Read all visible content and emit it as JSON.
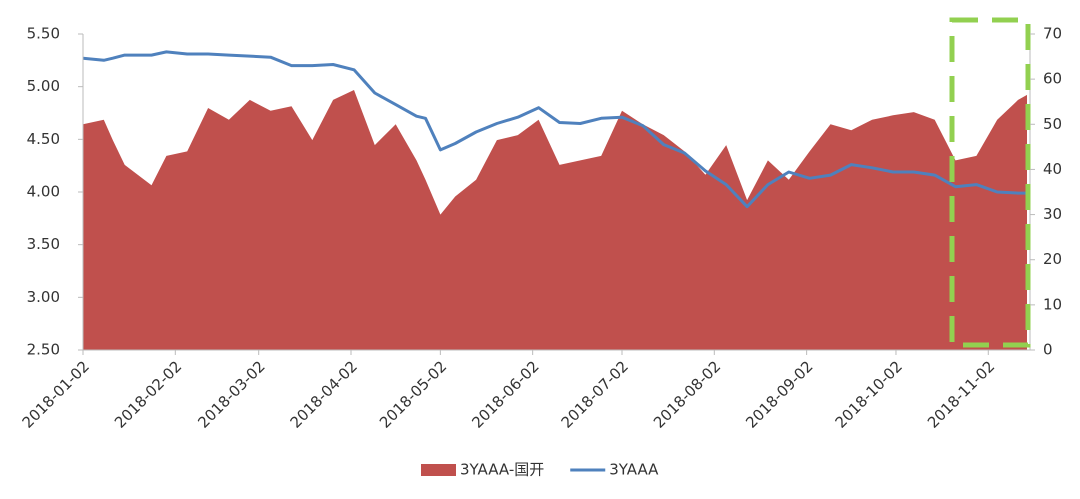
{
  "chart_data": {
    "type": "area-line",
    "x": [
      "2018-01-02",
      "2018-01-09",
      "2018-01-12",
      "2018-01-16",
      "2018-01-25",
      "2018-01-30",
      "2018-02-06",
      "2018-02-13",
      "2018-02-20",
      "2018-02-27",
      "2018-03-06",
      "2018-03-13",
      "2018-03-20",
      "2018-03-27",
      "2018-04-03",
      "2018-04-10",
      "2018-04-17",
      "2018-04-24",
      "2018-04-27",
      "2018-05-02",
      "2018-05-07",
      "2018-05-14",
      "2018-05-21",
      "2018-05-28",
      "2018-06-04",
      "2018-06-11",
      "2018-06-18",
      "2018-06-25",
      "2018-07-02",
      "2018-07-09",
      "2018-07-16",
      "2018-07-23",
      "2018-07-30",
      "2018-08-06",
      "2018-08-13",
      "2018-08-20",
      "2018-08-27",
      "2018-09-03",
      "2018-09-10",
      "2018-09-17",
      "2018-09-24",
      "2018-10-01",
      "2018-10-08",
      "2018-10-15",
      "2018-10-22",
      "2018-10-29",
      "2018-11-05",
      "2018-11-12",
      "2018-11-15"
    ],
    "series": [
      {
        "name": "3YAAA-国开",
        "color": "#c0504d",
        "axis": "y2",
        "values": [
          50,
          51,
          46.5,
          41,
          36.5,
          43,
          44,
          53.6,
          51,
          55.4,
          53,
          54,
          46.5,
          55.4,
          57.6,
          45.4,
          50,
          42,
          37.7,
          30,
          34,
          37.7,
          46.5,
          47.6,
          51,
          41,
          42,
          43,
          53,
          50,
          47.6,
          44,
          38.8,
          45.4,
          33.2,
          42,
          37.7,
          44,
          50,
          48.7,
          51,
          52,
          52.7,
          51,
          42,
          43,
          51,
          55.4,
          56.5
        ]
      },
      {
        "name": "3YAAA",
        "color": "#4f81bd",
        "values": [
          5.27,
          5.25,
          5.27,
          5.3,
          5.3,
          5.33,
          5.31,
          5.31,
          5.3,
          5.29,
          5.28,
          5.2,
          5.2,
          5.21,
          5.16,
          4.94,
          4.83,
          4.72,
          4.7,
          4.4,
          4.46,
          4.57,
          4.65,
          4.71,
          4.8,
          4.66,
          4.65,
          4.7,
          4.71,
          4.63,
          4.45,
          4.37,
          4.2,
          4.07,
          3.86,
          4.07,
          4.19,
          4.13,
          4.16,
          4.26,
          4.23,
          4.19,
          4.19,
          4.16,
          4.05,
          4.07,
          4.0,
          3.99,
          3.99
        ]
      }
    ],
    "xlim": [
      "2018-01-02",
      "2018-11-15"
    ],
    "xticks": [
      "2018-01-02",
      "2018-02-02",
      "2018-03-02",
      "2018-04-02",
      "2018-05-02",
      "2018-06-02",
      "2018-07-02",
      "2018-08-02",
      "2018-09-02",
      "2018-10-02",
      "2018-11-02"
    ],
    "ylim": [
      2.5,
      5.5
    ],
    "yticks": [
      {
        "value": 2.5,
        "label": "2.50"
      },
      {
        "value": 3,
        "label": "3.00"
      },
      {
        "value": 3.5,
        "label": "3.50"
      },
      {
        "value": 4,
        "label": "4.00"
      },
      {
        "value": 4.5,
        "label": "4.50"
      },
      {
        "value": 5,
        "label": "5.00"
      },
      {
        "value": 5.5,
        "label": "5.50"
      }
    ],
    "y2lim": [
      0,
      70
    ],
    "y2ticks": [
      0,
      10,
      20,
      30,
      40,
      50,
      60,
      70
    ]
  }
}
